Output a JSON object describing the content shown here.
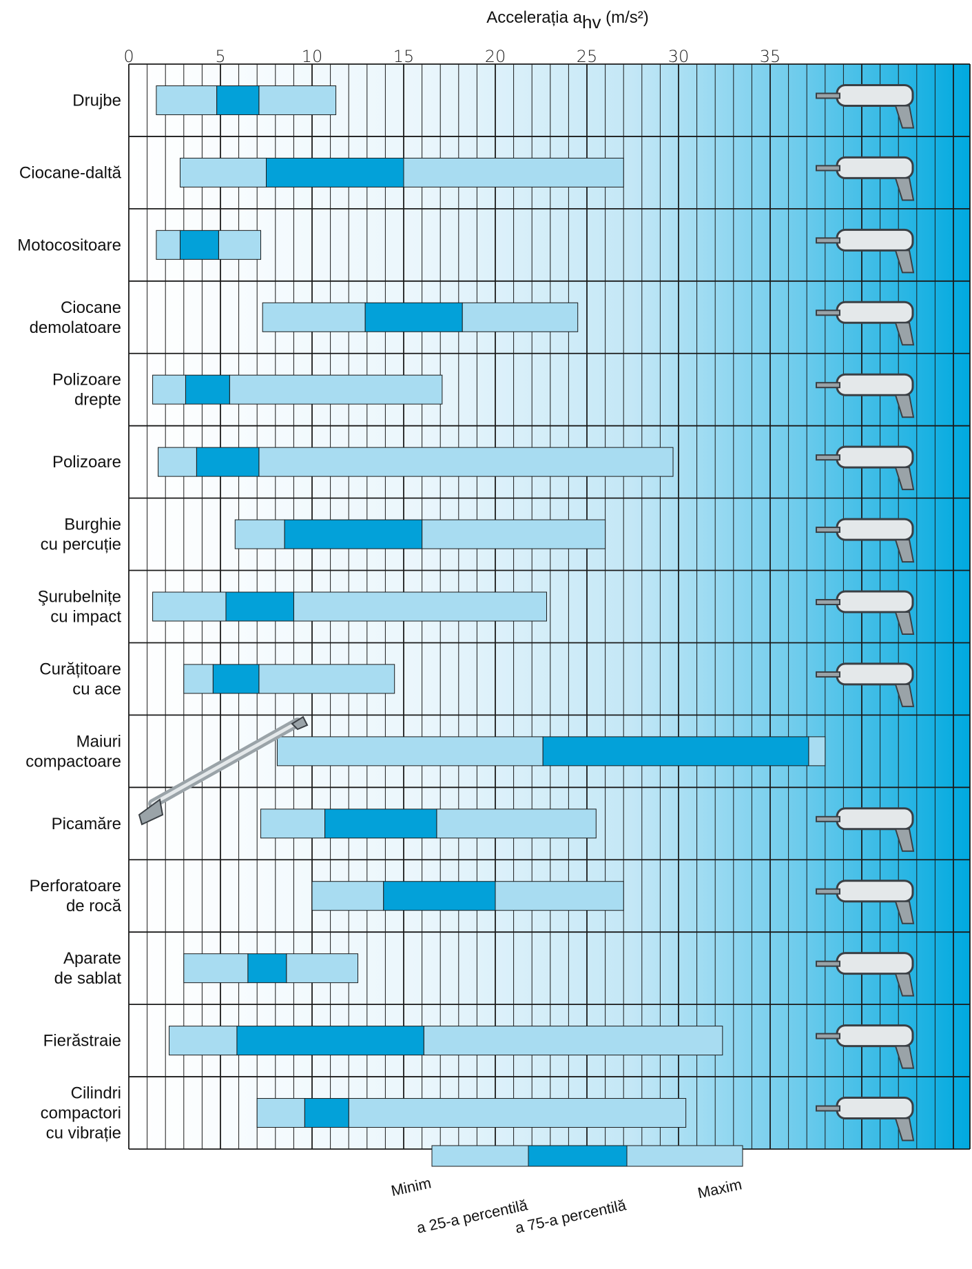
{
  "chart_data": {
    "type": "bar",
    "subtype": "horizontal-range",
    "xlabel_main": "Accelerația a",
    "xlabel_sub": "hv",
    "xlabel_unit": " (m/s²)",
    "xlim": [
      0,
      38
    ],
    "xticks": [
      "0",
      "5",
      "10",
      "15",
      "20",
      "25",
      "30",
      "35"
    ],
    "xtick_values": [
      0,
      5,
      10,
      15,
      20,
      25,
      30,
      35
    ],
    "grid": true,
    "background": "gradient-white-to-blue",
    "categories": [
      [
        "Drujbe"
      ],
      [
        "Ciocane-daltă"
      ],
      [
        "Motocositoare"
      ],
      [
        "Ciocane",
        "demolatoare"
      ],
      [
        "Polizoare",
        "drepte"
      ],
      [
        "Polizoare"
      ],
      [
        "Burghie",
        "cu percuție"
      ],
      [
        "Şurubelnițe",
        "cu impact"
      ],
      [
        "Curățitoare",
        "cu ace"
      ],
      [
        "Maiuri",
        "compactoare"
      ],
      [
        "Picamăre"
      ],
      [
        "Perforatoare",
        "de rocă"
      ],
      [
        "Aparate",
        "de sablat"
      ],
      [
        "Fierăstraie"
      ],
      [
        "Cilindri",
        "compactori",
        "cu vibrație"
      ]
    ],
    "min": [
      1.5,
      2.8,
      1.5,
      7.3,
      1.3,
      1.6,
      5.8,
      1.3,
      3.0,
      8.1,
      7.2,
      10.0,
      3.0,
      2.2,
      7.0
    ],
    "p25": [
      4.8,
      7.5,
      2.8,
      12.9,
      3.1,
      3.7,
      8.5,
      5.3,
      4.6,
      22.6,
      10.7,
      13.9,
      6.5,
      5.9,
      9.6
    ],
    "p75": [
      7.1,
      15.0,
      4.9,
      18.2,
      5.5,
      7.1,
      16.0,
      9.0,
      7.1,
      37.1,
      16.8,
      20.0,
      8.6,
      16.1,
      12.0
    ],
    "max": [
      11.3,
      27.0,
      7.2,
      24.5,
      17.1,
      29.7,
      26.0,
      22.8,
      14.5,
      38.0,
      25.5,
      27.0,
      12.5,
      32.4,
      30.4
    ],
    "legend": [
      "Minim",
      "a 25-a percentilă",
      "a 75-a percentilă",
      "Maxim"
    ],
    "legend_position": "bottom"
  },
  "colors": {
    "bar_light": "#a8dcf1",
    "bar_dark": "#03a1d9",
    "grid": "#1a1a1a",
    "bar_stroke": "#1a1a1a",
    "bg_start": "#ffffff",
    "bg_end": "#00a9df"
  },
  "icons": [
    "chainsaw-icon",
    "chisel-hammer-icon",
    "brushcutter-icon",
    "demolition-hammer-icon",
    "straight-grinder-icon",
    "angle-grinder-icon",
    "impact-drill-icon",
    "impact-wrench-icon",
    "needle-scaler-icon",
    "rammer-icon",
    "pick-hammer-icon",
    "rock-drill-icon",
    "sander-icon",
    "reciprocating-saw-icon",
    "vibratory-compactor-icon"
  ]
}
